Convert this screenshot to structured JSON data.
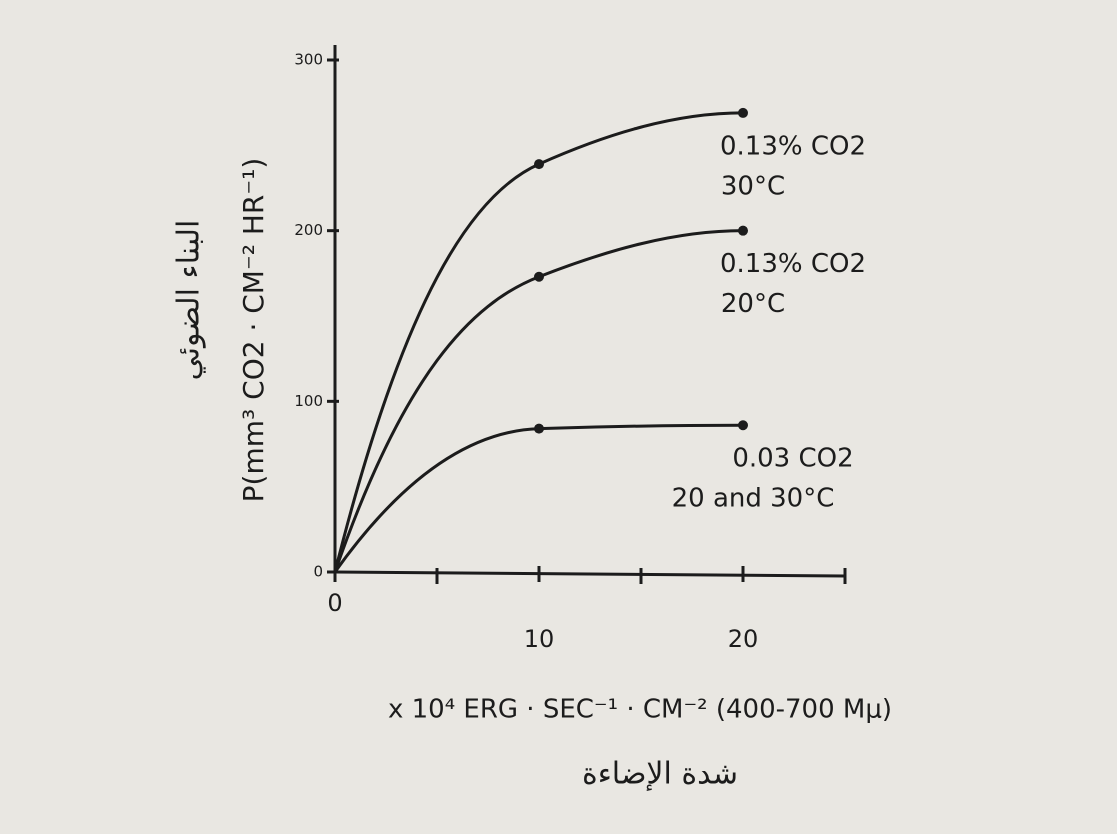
{
  "chart_data": {
    "type": "line",
    "x": [
      0,
      10,
      20
    ],
    "series": [
      {
        "label_lines": [
          "0.13% CO2",
          "30°C"
        ],
        "color": "#1c1c1c",
        "values": [
          0,
          239,
          269
        ]
      },
      {
        "label_lines": [
          "0.13% CO2",
          "20°C"
        ],
        "color": "#1c1c1c",
        "values": [
          0,
          173,
          200
        ]
      },
      {
        "label_lines": [
          "0.03 CO2",
          "20 and 30°C"
        ],
        "color": "#1c1c1c",
        "values": [
          0,
          84,
          86
        ]
      }
    ],
    "xlim": [
      0,
      25
    ],
    "xticks": [
      0,
      10,
      20
    ],
    "xminor_ticks": [
      5,
      15,
      25
    ],
    "ylim": [
      0,
      300
    ],
    "yticks": [
      0,
      100,
      200,
      300
    ],
    "y_label": "P(mm³ CO2 · CM⁻² HR⁻¹)",
    "y_label_arabic": "البناء الضوئي",
    "x_label": "x 10⁴ ERG · SEC⁻¹ · CM⁻² (400-700 Mμ)",
    "x_label_arabic": "شدة الإضاءة",
    "grid": false
  }
}
